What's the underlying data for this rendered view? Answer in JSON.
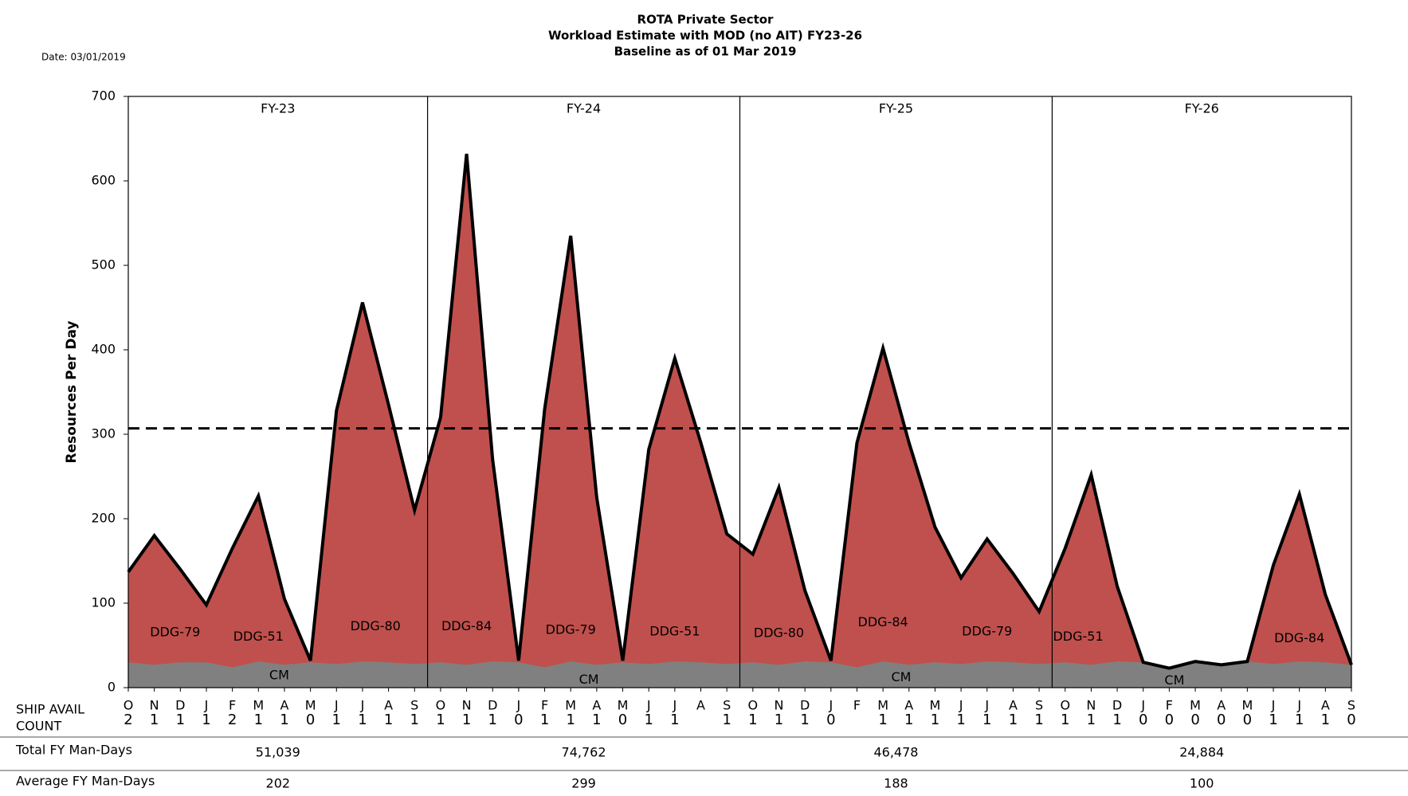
{
  "chart_data": {
    "type": "area",
    "title": [
      "ROTA Private Sector",
      "Workload  Estimate with MOD (no AIT) FY23-26",
      "Baseline  as of 01 Mar 2019"
    ],
    "date_label": "Date: 03/01/2019",
    "y_label": "Resources Per Day",
    "panels": [
      "FY-23",
      "FY-24",
      "FY-25",
      "FY-26"
    ],
    "categories": [
      "O",
      "N",
      "D",
      "J",
      "F",
      "M",
      "A",
      "M",
      "J",
      "J",
      "A",
      "S",
      "O",
      "N",
      "D",
      "J",
      "F",
      "M",
      "A",
      "M",
      "J",
      "J",
      "A",
      "S",
      "O",
      "N",
      "D",
      "J",
      "F",
      "M",
      "A",
      "M",
      "J",
      "J",
      "A",
      "S",
      "O",
      "N",
      "D",
      "J",
      "F",
      "M",
      "A",
      "M",
      "J",
      "J",
      "A",
      "S"
    ],
    "series": [
      {
        "color": "#808080",
        "values": [
          30,
          27,
          30,
          30,
          24,
          31,
          27,
          30,
          28,
          31,
          30,
          28,
          30,
          27,
          31,
          30,
          24,
          31,
          27,
          30,
          28,
          31,
          30,
          28,
          30,
          27,
          31,
          30,
          24,
          31,
          27,
          30,
          28,
          31,
          30,
          28,
          30,
          27,
          31,
          30,
          23,
          31,
          27,
          31,
          28,
          31,
          30,
          27
        ]
      },
      {
        "color": "#c0504d",
        "line_color": "#000000",
        "values": [
          137,
          180,
          140,
          98,
          165,
          227,
          105,
          32,
          328,
          456,
          335,
          210,
          320,
          632,
          270,
          32,
          330,
          535,
          225,
          32,
          282,
          390,
          290,
          182,
          158,
          237,
          115,
          32,
          290,
          402,
          290,
          190,
          130,
          176,
          135,
          90,
          165,
          252,
          120,
          30,
          23,
          31,
          27,
          31,
          145,
          229,
          110,
          27
        ]
      }
    ],
    "reference_line": 307,
    "annotations": [
      "DDG-79",
      "DDG-51",
      "DDG-80",
      "DDG-84",
      "DDG-79",
      "DDG-51",
      "DDG-80",
      "DDG-84",
      "DDG-79",
      "DDG-51",
      "DDG-84",
      "CM",
      "CM",
      "CM",
      "CM"
    ],
    "ylim": [
      0,
      700
    ],
    "yticks": [
      0,
      100,
      200,
      300,
      400,
      500,
      600,
      700
    ],
    "count_label": [
      "SHIP AVAIL",
      "COUNT"
    ],
    "ship_avail_count": [
      2,
      1,
      1,
      1,
      2,
      1,
      1,
      0,
      1,
      1,
      1,
      1,
      1,
      1,
      1,
      0,
      1,
      1,
      1,
      0,
      1,
      1,
      null,
      1,
      1,
      1,
      1,
      0,
      null,
      1,
      1,
      1,
      1,
      1,
      1,
      1,
      1,
      1,
      1,
      0,
      0,
      0,
      0,
      0,
      1,
      1,
      1,
      0
    ],
    "table": [
      {
        "label": "Total FY Man-Days",
        "values": [
          "51,039",
          "74,762",
          "46,478",
          "24,884"
        ]
      },
      {
        "label": "Average FY Man-Days",
        "values": [
          202,
          299,
          188,
          100
        ]
      }
    ]
  }
}
